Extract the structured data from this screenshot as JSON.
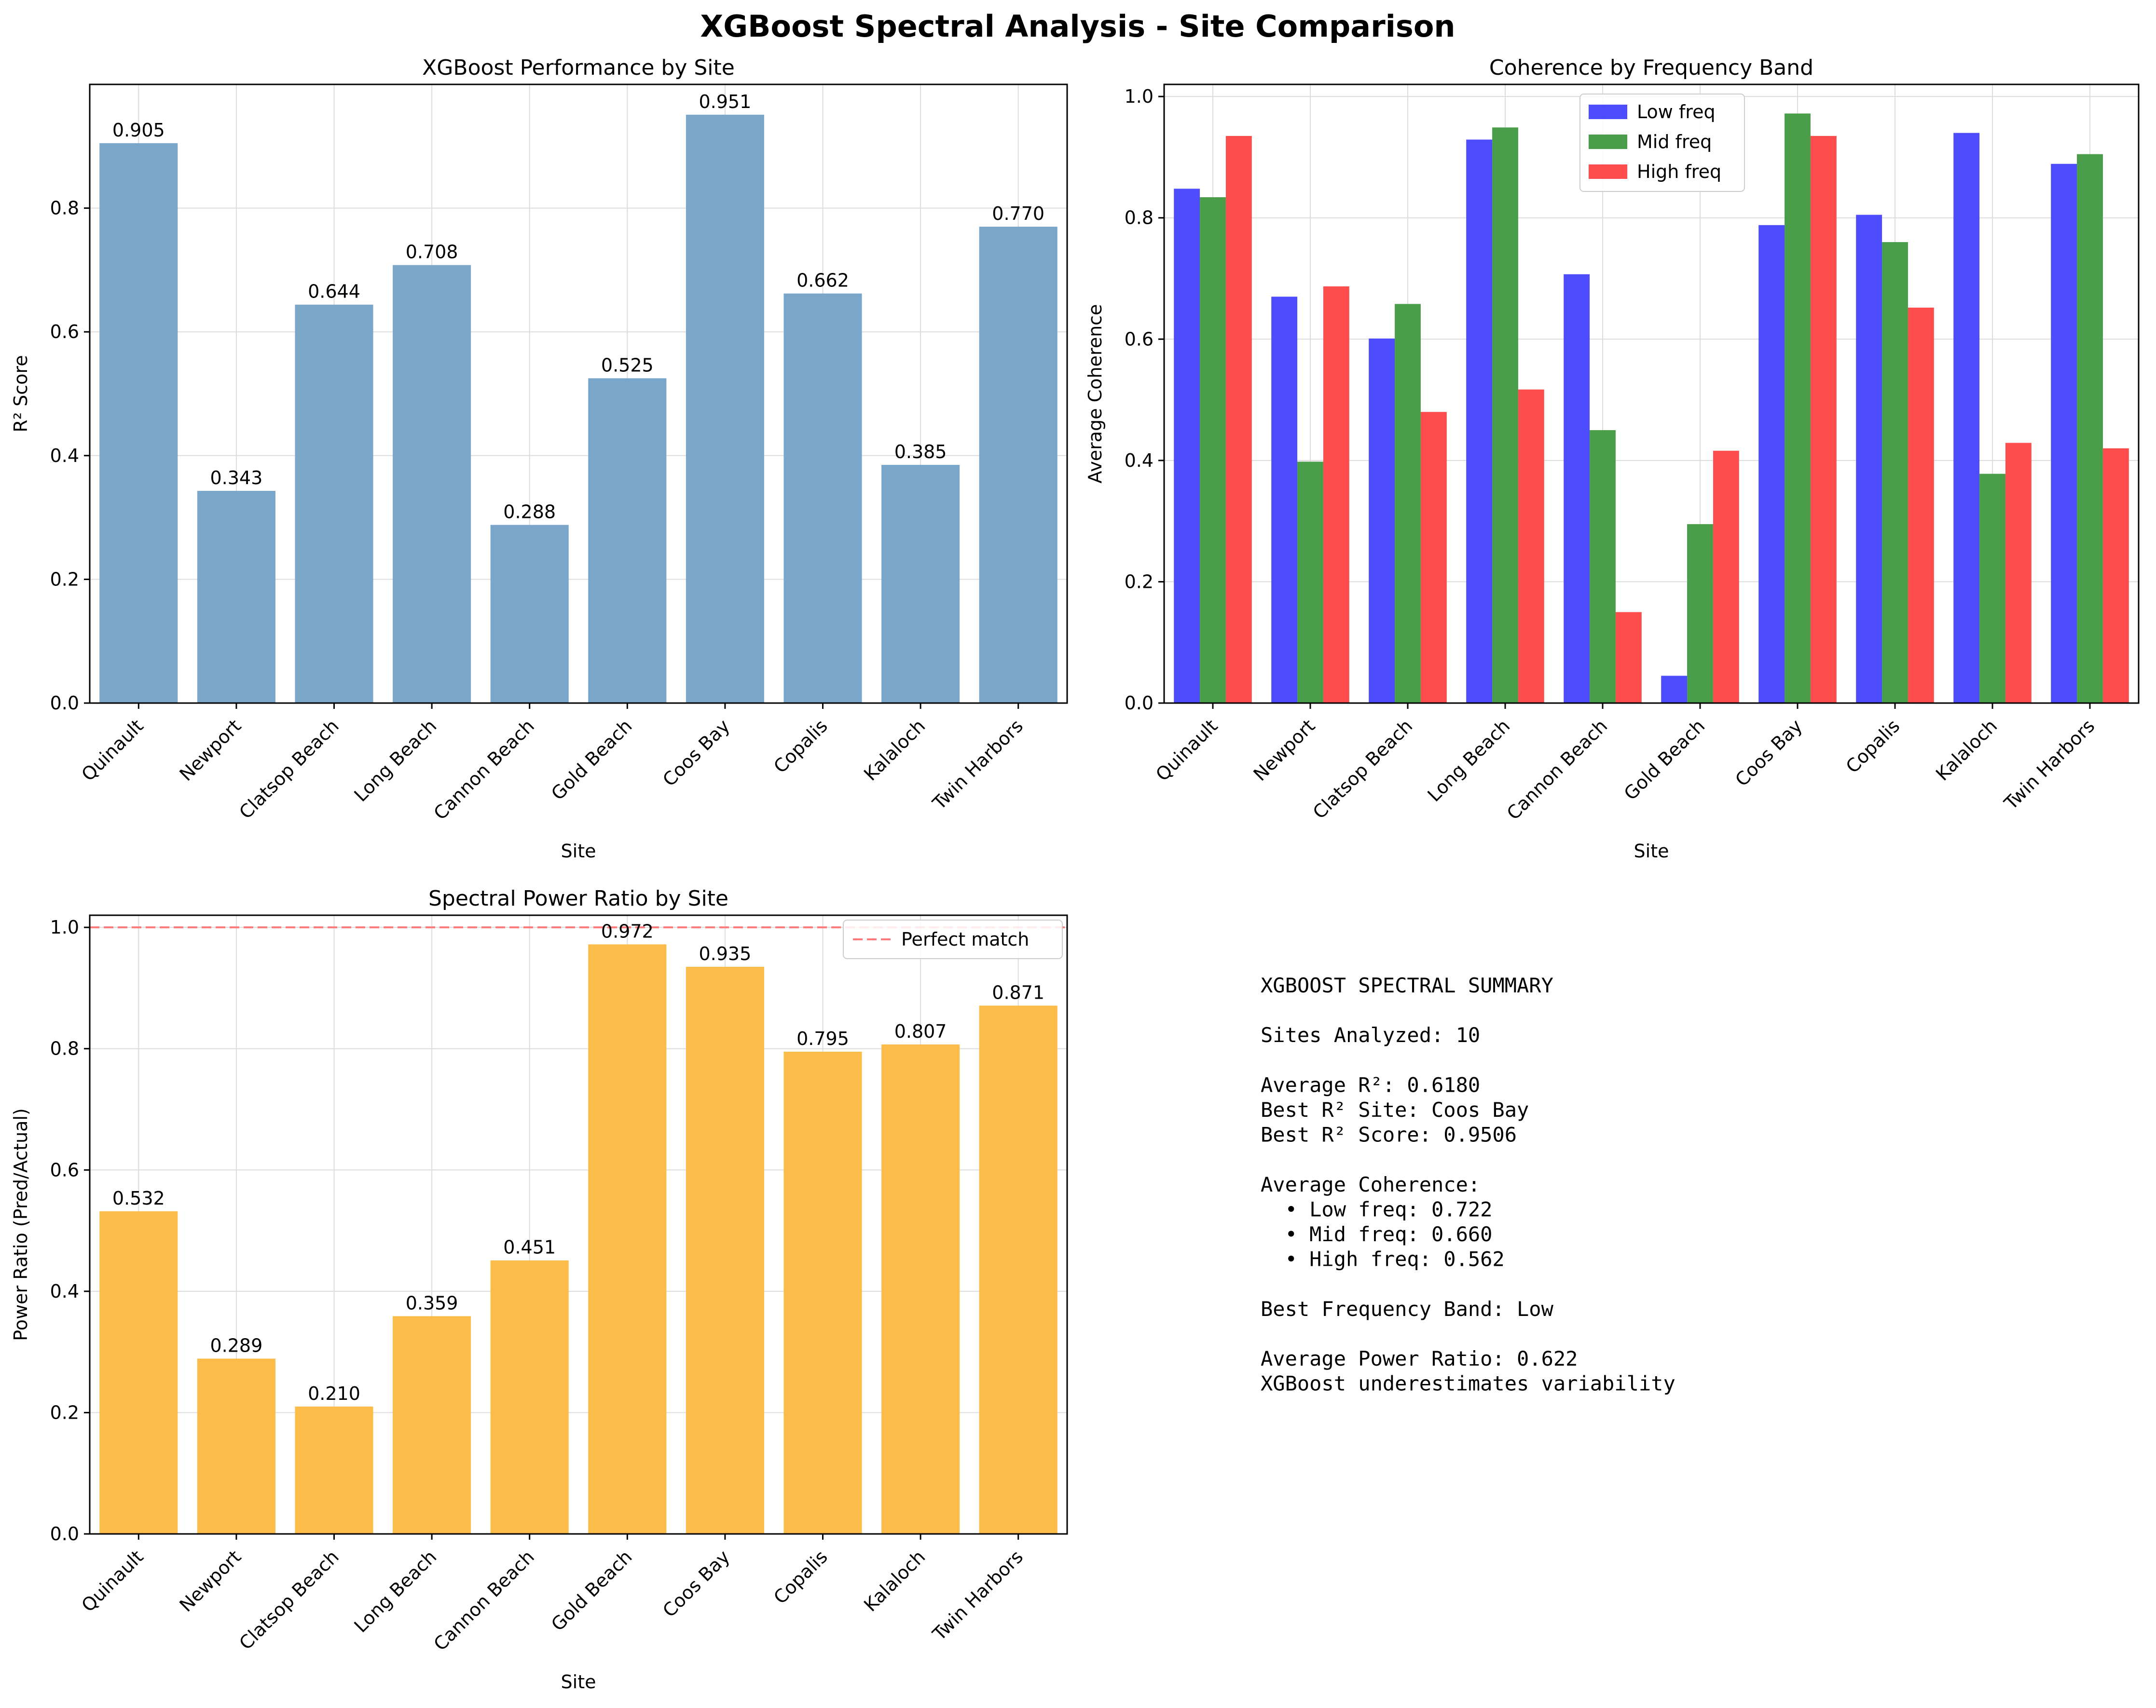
{
  "figure": {
    "title": "XGBoost Spectral Analysis - Site Comparison"
  },
  "sites": [
    "Quinault",
    "Newport",
    "Clatsop Beach",
    "Long Beach",
    "Cannon Beach",
    "Gold Beach",
    "Coos Bay",
    "Copalis",
    "Kalaloch",
    "Twin Harbors"
  ],
  "chart_data": [
    {
      "id": "r2",
      "type": "bar",
      "title": "XGBoost Performance by Site",
      "xlabel": "Site",
      "ylabel": "R² Score",
      "categories": [
        "Quinault",
        "Newport",
        "Clatsop Beach",
        "Long Beach",
        "Cannon Beach",
        "Gold Beach",
        "Coos Bay",
        "Copalis",
        "Kalaloch",
        "Twin Harbors"
      ],
      "values": [
        0.905,
        0.343,
        0.644,
        0.708,
        0.288,
        0.525,
        0.951,
        0.662,
        0.385,
        0.77
      ],
      "data_labels": [
        "0.905",
        "0.343",
        "0.644",
        "0.708",
        "0.288",
        "0.525",
        "0.951",
        "0.662",
        "0.385",
        "0.770"
      ],
      "ylim": [
        0,
        1.0
      ],
      "yticks": [
        "0.0",
        "0.2",
        "0.4",
        "0.6",
        "0.8"
      ],
      "ytick_values": [
        0,
        0.2,
        0.4,
        0.6,
        0.8
      ],
      "color": "#7aa6c9",
      "grid": true
    },
    {
      "id": "coherence",
      "type": "bar",
      "title": "Coherence by Frequency Band",
      "xlabel": "Site",
      "ylabel": "Average Coherence",
      "categories": [
        "Quinault",
        "Newport",
        "Clatsop Beach",
        "Long Beach",
        "Cannon Beach",
        "Gold Beach",
        "Coos Bay",
        "Copalis",
        "Kalaloch",
        "Twin Harbors"
      ],
      "series": [
        {
          "name": "Low freq",
          "color": "#4d4dff",
          "values": [
            0.848,
            0.67,
            0.601,
            0.929,
            0.707,
            0.045,
            0.788,
            0.805,
            0.94,
            0.889
          ]
        },
        {
          "name": "Mid freq",
          "color": "#4a9e4a",
          "values": [
            0.834,
            0.398,
            0.658,
            0.949,
            0.45,
            0.295,
            0.972,
            0.76,
            0.378,
            0.905
          ]
        },
        {
          "name": "High freq",
          "color": "#ff4d4d",
          "values": [
            0.935,
            0.687,
            0.48,
            0.517,
            0.15,
            0.416,
            0.935,
            0.652,
            0.429,
            0.42
          ]
        }
      ],
      "ylim": [
        0,
        1.02
      ],
      "yticks": [
        "0.0",
        "0.2",
        "0.4",
        "0.6",
        "0.8",
        "1.0"
      ],
      "ytick_values": [
        0,
        0.2,
        0.4,
        0.6,
        0.8,
        1.0
      ],
      "legend": "top-center",
      "grid": true
    },
    {
      "id": "power",
      "type": "bar",
      "title": "Spectral Power Ratio by Site",
      "xlabel": "Site",
      "ylabel": "Power Ratio (Pred/Actual)",
      "categories": [
        "Quinault",
        "Newport",
        "Clatsop Beach",
        "Long Beach",
        "Cannon Beach",
        "Gold Beach",
        "Coos Bay",
        "Copalis",
        "Kalaloch",
        "Twin Harbors"
      ],
      "values": [
        0.532,
        0.289,
        0.21,
        0.359,
        0.451,
        0.972,
        0.935,
        0.795,
        0.807,
        0.871
      ],
      "data_labels": [
        "0.532",
        "0.289",
        "0.210",
        "0.359",
        "0.451",
        "0.972",
        "0.935",
        "0.795",
        "0.807",
        "0.871"
      ],
      "ylim": [
        0,
        1.02
      ],
      "yticks": [
        "0.0",
        "0.2",
        "0.4",
        "0.6",
        "0.8",
        "1.0"
      ],
      "ytick_values": [
        0,
        0.2,
        0.4,
        0.6,
        0.8,
        1.0
      ],
      "color": "#fbbc4a",
      "reference_line": {
        "value": 1.0,
        "label": "Perfect match",
        "color": "#ff7a7a",
        "style": "dashed"
      },
      "legend": "top-right",
      "grid": true
    }
  ],
  "summary": {
    "lines": [
      "XGBOOST SPECTRAL SUMMARY",
      "",
      "Sites Analyzed: 10",
      "",
      "Average R²: 0.6180",
      "Best R² Site: Coos Bay",
      "Best R² Score: 0.9506",
      "",
      "Average Coherence:",
      "  • Low freq: 0.722",
      "  • Mid freq: 0.660",
      "  • High freq: 0.562",
      "",
      "Best Frequency Band: Low",
      "",
      "Average Power Ratio: 0.622",
      "XGBoost underestimates variability"
    ]
  }
}
